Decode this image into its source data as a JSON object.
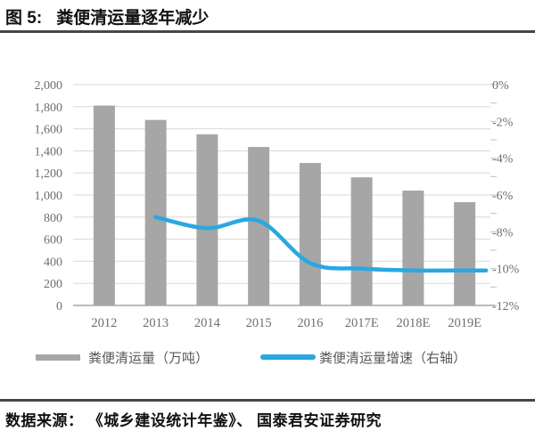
{
  "header": {
    "label_prefix": "图 5:",
    "title": "粪便清运量逐年减少"
  },
  "chart_data": {
    "type": "bar+line",
    "title": "粪便清运量逐年减少",
    "categories": [
      "2012",
      "2013",
      "2014",
      "2015",
      "2016",
      "2017E",
      "2018E",
      "2019E"
    ],
    "series": [
      {
        "name": "粪便清运量（万吨）",
        "type": "bar",
        "axis": "left",
        "values": [
          1810,
          1680,
          1550,
          1435,
          1290,
          1160,
          1040,
          935
        ]
      },
      {
        "name": "粪便清运量增速（右轴）",
        "type": "line",
        "axis": "right",
        "unit": "%",
        "values": [
          null,
          -7.2,
          -7.8,
          -7.4,
          -9.7,
          -10.0,
          -10.1,
          -10.1
        ]
      }
    ],
    "left_axis": {
      "min": 0,
      "max": 2000,
      "step": 200,
      "tick_labels": [
        "2,000",
        "1,800",
        "1,600",
        "1,400",
        "1,200",
        "1,000",
        "800",
        "600",
        "400",
        "200",
        "0"
      ]
    },
    "right_axis": {
      "min": -12,
      "max": 0,
      "step": 2,
      "minor_step": 1,
      "tick_labels": [
        "0%",
        "-2%",
        "-4%",
        "-6%",
        "-8%",
        "-10%",
        "-12%"
      ]
    },
    "grid": true,
    "legend_position": "bottom"
  },
  "legend": [
    {
      "swatch": "bar",
      "label": "粪便清运量（万吨）"
    },
    {
      "swatch": "line",
      "label": "粪便清运量增速（右轴）"
    }
  ],
  "footer": {
    "text": "数据来源： 《城乡建设统计年鉴》、 国泰君安证券研究"
  },
  "colors": {
    "bar": "#a6a6a6",
    "line": "#29a8e2",
    "grid": "#d9d9d9",
    "axis_line": "#a6a6a6",
    "tick_text": "#6e6e6e",
    "rule": "#45454d",
    "legend_text": "#595959"
  }
}
